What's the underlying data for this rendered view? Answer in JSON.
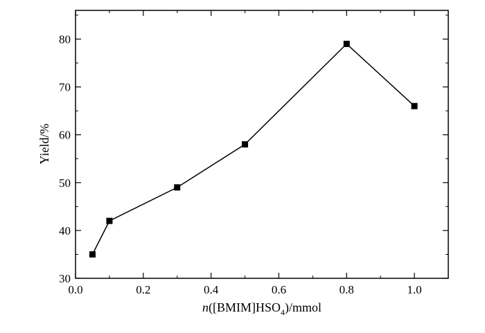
{
  "chart_data": {
    "type": "line",
    "xlabel": "n([BMIM]HSO4)/mmol",
    "xlabel_parts": {
      "italic": "n",
      "before_sub": "([BMIM]HSO",
      "subscript": "4",
      "after_sub": ")/mmol"
    },
    "ylabel": "Yield/%",
    "xlim": [
      0.0,
      1.1
    ],
    "ylim": [
      30,
      86
    ],
    "x_ticks": [
      0.0,
      0.2,
      0.4,
      0.6,
      0.8,
      1.0
    ],
    "x_tick_labels": [
      "0.0",
      "0.2",
      "0.4",
      "0.6",
      "0.8",
      "1.0"
    ],
    "y_ticks": [
      30,
      40,
      50,
      60,
      70,
      80
    ],
    "y_tick_labels": [
      "30",
      "40",
      "50",
      "60",
      "70",
      "80"
    ],
    "grid": false,
    "legend": false,
    "line_color": "#000000",
    "marker": "square",
    "series": [
      {
        "x": [
          0.05,
          0.1,
          0.3,
          0.5,
          0.8,
          1.0
        ],
        "y": [
          35,
          42,
          49,
          58,
          79,
          66
        ]
      }
    ]
  }
}
